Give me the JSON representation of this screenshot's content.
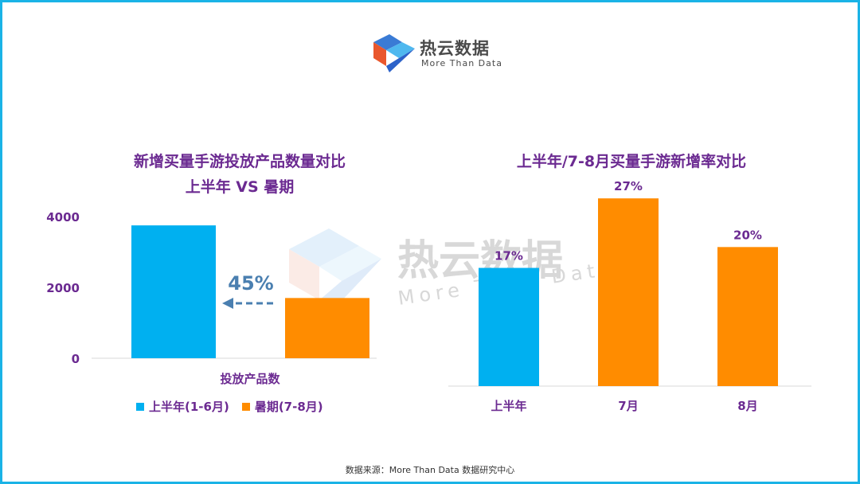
{
  "logo": {
    "name": "热云数据",
    "tagline": "More Than Data",
    "colors": [
      "#3a7bd5",
      "#e9572d",
      "#4fb8ef",
      "#2c62c9"
    ]
  },
  "watermark": {
    "name": "热云数据",
    "tagline": "More Than Data"
  },
  "colors": {
    "blue": "#00b0f0",
    "orange": "#ff8c00",
    "title": "#6b2a91",
    "arrow": "#4a7fb0",
    "frame": "#1ab3e6"
  },
  "source_note": "数据来源：More Than Data 数据研究中心",
  "chart_data": [
    {
      "type": "bar",
      "title_line1": "新增买量手游投放产品数量对比",
      "title_line2": "上半年 VS 暑期",
      "categories": [
        "投放产品数"
      ],
      "series": [
        {
          "name": "上半年(1-6月)",
          "values": [
            3750
          ],
          "color": "#00b0f0"
        },
        {
          "name": "暑期(7-8月)",
          "values": [
            1700
          ],
          "color": "#ff8c00"
        }
      ],
      "ylim": [
        0,
        4000
      ],
      "yticks": [
        0,
        2000,
        4000
      ],
      "annotation": "45%",
      "legend": "bottom"
    },
    {
      "type": "bar",
      "title": "上半年/7-8月买量手游新增率对比",
      "categories": [
        "上半年",
        "7月",
        "8月"
      ],
      "values": [
        17,
        27,
        20
      ],
      "value_labels": [
        "17%",
        "27%",
        "20%"
      ],
      "colors": [
        "#00b0f0",
        "#ff8c00",
        "#ff8c00"
      ],
      "ylim": [
        0,
        30
      ]
    }
  ]
}
